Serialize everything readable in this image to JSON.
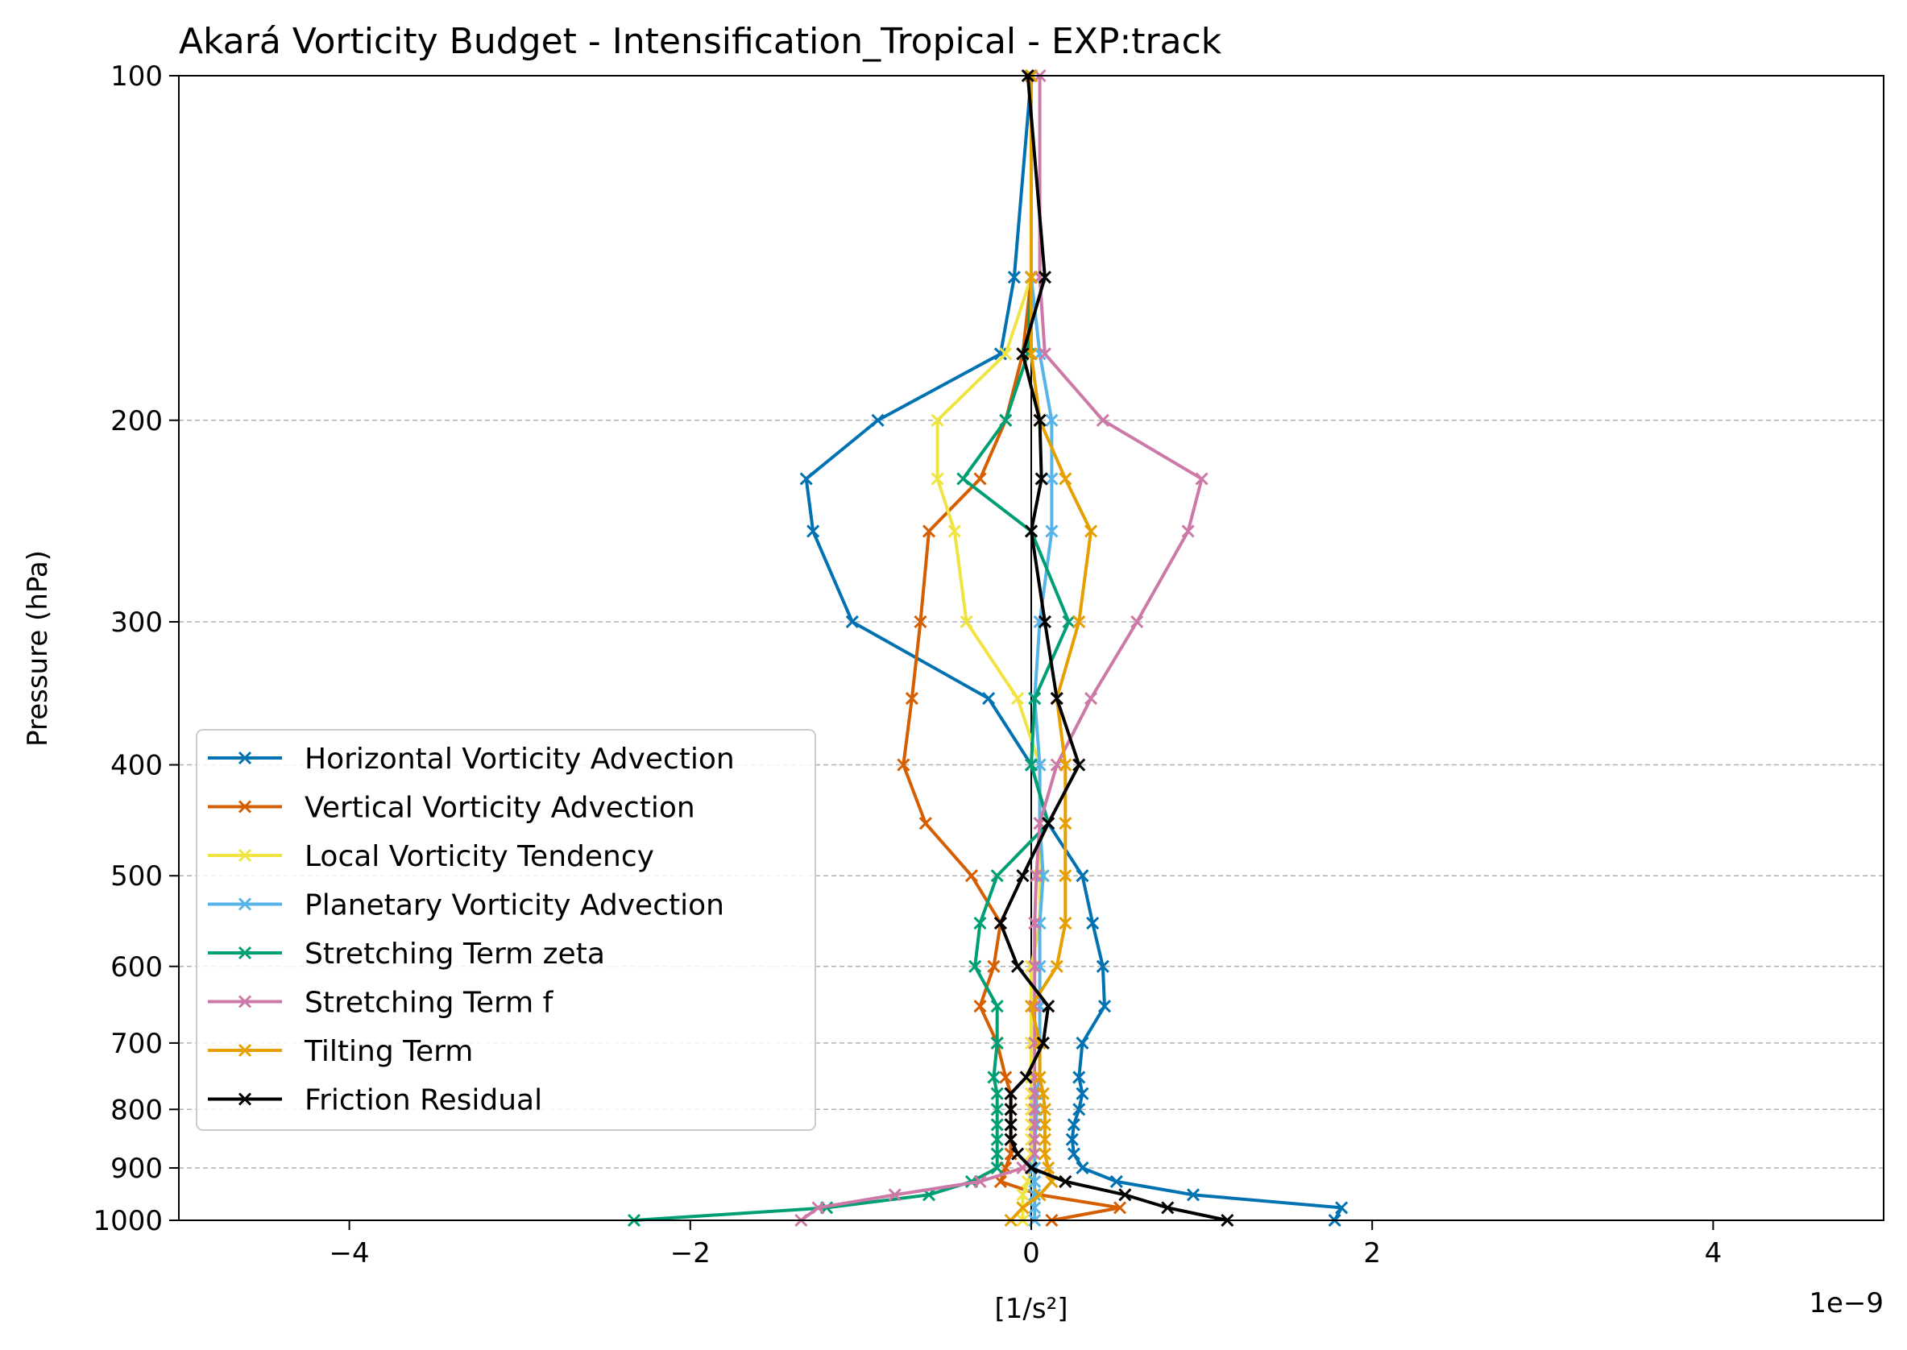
{
  "chart_data": {
    "type": "line",
    "title": "Akará Vorticity Budget - Intensification_Tropical - EXP:track",
    "xlabel": "[1/s²]",
    "ylabel": "Pressure (hPa)",
    "x_offset_label": "1e−9",
    "xlim": [
      -5,
      5
    ],
    "ylim": [
      1000,
      100
    ],
    "y_scale": "log",
    "x_tick_values": [
      -4,
      -2,
      0,
      2,
      4
    ],
    "x_tick_labels": [
      "−4",
      "−2",
      "0",
      "2",
      "4"
    ],
    "y_tick_values": [
      100,
      200,
      300,
      400,
      500,
      600,
      700,
      800,
      900,
      1000
    ],
    "y_tick_labels": [
      "100",
      "200",
      "300",
      "400",
      "500",
      "600",
      "700",
      "800",
      "900",
      "1000"
    ],
    "grid": "horizontal dashed at pressure ticks",
    "legend_position": "lower-left",
    "levels": [
      100,
      150,
      175,
      200,
      225,
      250,
      300,
      350,
      400,
      450,
      500,
      550,
      600,
      650,
      700,
      750,
      775,
      800,
      825,
      850,
      875,
      900,
      925,
      950,
      975,
      1000
    ],
    "series": [
      {
        "name": "Horizontal Vorticity Advection",
        "color": "#0072B2",
        "values": [
          0.0,
          -0.1,
          -0.18,
          -0.9,
          -1.32,
          -1.28,
          -1.05,
          -0.25,
          0.0,
          0.1,
          0.3,
          0.36,
          0.42,
          0.43,
          0.3,
          0.28,
          0.3,
          0.28,
          0.25,
          0.24,
          0.25,
          0.3,
          0.5,
          0.95,
          1.82,
          1.78
        ]
      },
      {
        "name": "Vertical Vorticity Advection",
        "color": "#D55E00",
        "values": [
          0.0,
          0.0,
          -0.05,
          -0.15,
          -0.3,
          -0.6,
          -0.65,
          -0.7,
          -0.75,
          -0.62,
          -0.35,
          -0.18,
          -0.22,
          -0.3,
          -0.2,
          -0.15,
          -0.12,
          -0.12,
          -0.12,
          -0.12,
          -0.12,
          -0.15,
          -0.18,
          0.05,
          0.52,
          0.12
        ]
      },
      {
        "name": "Local Vorticity Tendency",
        "color": "#F0E442",
        "values": [
          0.0,
          0.0,
          -0.15,
          -0.55,
          -0.55,
          -0.45,
          -0.38,
          -0.08,
          0.05,
          0.05,
          0.05,
          0.05,
          0.0,
          0.0,
          0.0,
          0.0,
          0.0,
          0.0,
          0.0,
          0.0,
          0.0,
          0.0,
          -0.02,
          -0.05,
          -0.05,
          -0.05
        ]
      },
      {
        "name": "Planetary Vorticity Advection",
        "color": "#56B4E9",
        "values": [
          0.0,
          0.0,
          0.05,
          0.12,
          0.12,
          0.12,
          0.05,
          0.02,
          0.05,
          0.05,
          0.07,
          0.05,
          0.05,
          0.05,
          0.05,
          0.05,
          0.03,
          0.03,
          0.03,
          0.02,
          0.02,
          0.02,
          0.02,
          0.02,
          0.02,
          0.02
        ]
      },
      {
        "name": "Stretching Term zeta",
        "color": "#009E73",
        "values": [
          0.0,
          0.0,
          -0.02,
          -0.15,
          -0.4,
          0.0,
          0.22,
          0.02,
          0.0,
          0.1,
          -0.2,
          -0.3,
          -0.33,
          -0.2,
          -0.2,
          -0.22,
          -0.2,
          -0.2,
          -0.2,
          -0.2,
          -0.2,
          -0.2,
          -0.35,
          -0.6,
          -1.2,
          -2.33
        ]
      },
      {
        "name": "Stretching Term f",
        "color": "#CC79A7",
        "values": [
          0.05,
          0.05,
          0.08,
          0.42,
          1.0,
          0.92,
          0.62,
          0.35,
          0.15,
          0.05,
          0.03,
          0.02,
          0.02,
          0.02,
          0.02,
          0.02,
          0.02,
          0.02,
          0.02,
          0.02,
          0.02,
          -0.05,
          -0.3,
          -0.8,
          -1.25,
          -1.35
        ]
      },
      {
        "name": "Tilting Term",
        "color": "#E69F00",
        "values": [
          0.0,
          0.0,
          0.0,
          0.05,
          0.2,
          0.35,
          0.28,
          0.15,
          0.2,
          0.2,
          0.2,
          0.2,
          0.15,
          0.0,
          0.05,
          0.05,
          0.07,
          0.08,
          0.08,
          0.08,
          0.08,
          0.1,
          0.12,
          0.05,
          -0.05,
          -0.12
        ]
      },
      {
        "name": "Friction Residual",
        "color": "#000000",
        "values": [
          -0.02,
          0.08,
          -0.05,
          0.05,
          0.06,
          0.0,
          0.08,
          0.15,
          0.28,
          0.1,
          -0.05,
          -0.18,
          -0.08,
          0.1,
          0.07,
          -0.03,
          -0.12,
          -0.12,
          -0.12,
          -0.12,
          -0.08,
          0.0,
          0.2,
          0.55,
          0.8,
          1.15
        ]
      }
    ]
  }
}
